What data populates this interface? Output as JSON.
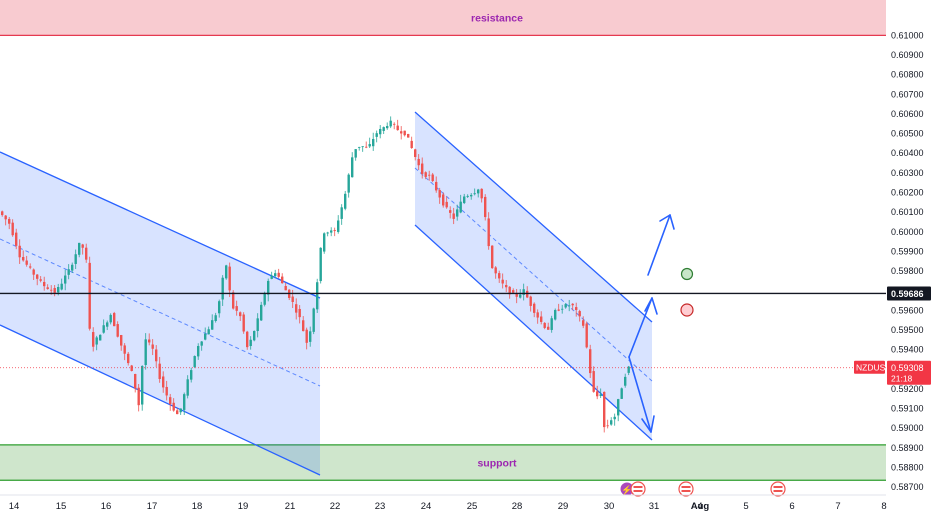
{
  "chart_data": {
    "type": "candlestick",
    "symbol": "NZDUSD",
    "last_price": "0.59308",
    "countdown": "21:18",
    "marked_level": "0.59686",
    "ylim": [
      0.5866,
      0.6118
    ],
    "y_ticks": [
      "0.61000",
      "0.60900",
      "0.60800",
      "0.60700",
      "0.60600",
      "0.60500",
      "0.60400",
      "0.60300",
      "0.60200",
      "0.60100",
      "0.60000",
      "0.59900",
      "0.59800",
      "0.59600",
      "0.59500",
      "0.59400",
      "0.59200",
      "0.59100",
      "0.59000",
      "0.58900",
      "0.58800",
      "0.58700"
    ],
    "x_ticks": [
      "14",
      "15",
      "16",
      "17",
      "18",
      "19",
      "21",
      "22",
      "23",
      "24",
      "25",
      "28",
      "29",
      "30",
      "31",
      "Aug",
      "4",
      "5",
      "6",
      "7",
      "8"
    ],
    "zones": [
      {
        "label": "resistance",
        "from": 0.61,
        "to": 0.612,
        "color": "#f8cbd0"
      },
      {
        "label": "support",
        "from": 0.58735,
        "to": 0.58915,
        "color": "#cfe6cc"
      }
    ],
    "candles": [],
    "colors": {
      "up": "#26a69a",
      "down": "#ef5350",
      "channel": "#2962ff",
      "channel_fill": "#2962ff",
      "price_tag": "#f23645",
      "level_tag": "#131722"
    }
  }
}
